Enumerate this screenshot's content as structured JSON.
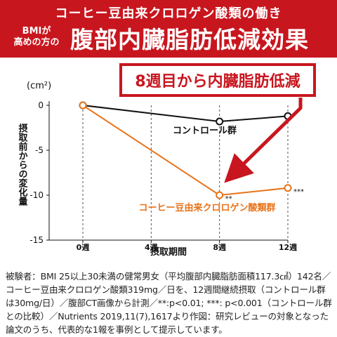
{
  "header": {
    "top_title": "コーヒー豆由来クロロゲン酸類の働き",
    "bmi_line1": "BMIが",
    "bmi_line2": "高めの方の",
    "main_title": "腹部内臓脂肪低減効果"
  },
  "callout": {
    "text": "8週目から内臓脂肪低減"
  },
  "colors": {
    "header_red": "#c8161e",
    "control": "#111111",
    "treatment": "#e8731a",
    "arrow": "#c8161e"
  },
  "chart_data": {
    "type": "line",
    "unit_label": "(cm²)",
    "ylabel": "摂取前からの変化量",
    "xlabel": "摂取期間",
    "categories": [
      "0週",
      "4週",
      "8週",
      "12週"
    ],
    "x": [
      0,
      4,
      8,
      12
    ],
    "ylim": [
      -15,
      0
    ],
    "yticks": [
      0,
      -5,
      -10,
      -15
    ],
    "grid": "vertical dashed",
    "series": [
      {
        "name": "コントロール群",
        "color": "#111111",
        "x": [
          0,
          8,
          12
        ],
        "values": [
          0,
          -1.8,
          -1.2
        ]
      },
      {
        "name": "コーヒー豆由来クロロゲン酸類群",
        "color": "#e8731a",
        "x": [
          0,
          8,
          12
        ],
        "values": [
          0,
          -10.0,
          -9.2
        ]
      }
    ],
    "annotations": [
      {
        "series": 1,
        "x": 8,
        "text": "**"
      },
      {
        "series": 1,
        "x": 12,
        "text": "***"
      }
    ]
  },
  "footnote": "被験者：BMI 25以上30未満の健常男女（平均腹部内臓脂肪面積117.3㎠）142名／コーヒー豆由来クロロゲン酸類319mg／日を、12週間継続摂取（コントロール群は30mg/日）／腹部CT画像から計測／**:p<0.01; ***: p<0.001（コントロール群との比較）／Nutrients 2019,11(7),1617より作図：研究レビューの対象となった論文のうち、代表的な1報を事例として提示しています。"
}
